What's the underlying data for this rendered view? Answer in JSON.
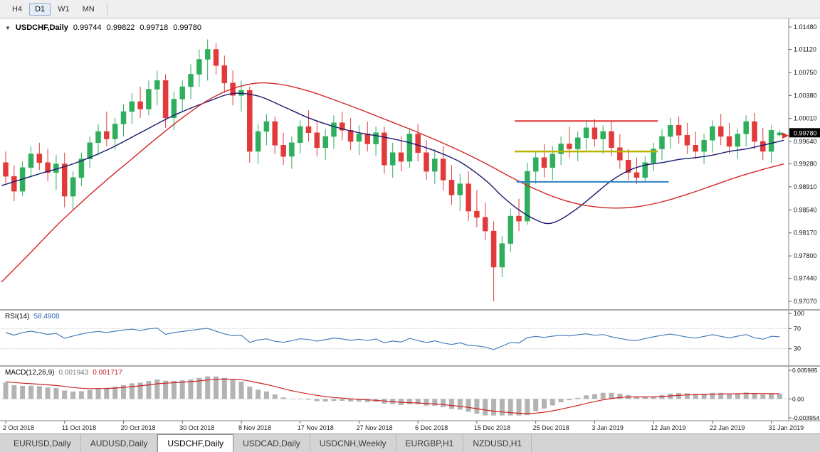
{
  "toolbar": {
    "buttons": [
      {
        "label": "H4",
        "active": false
      },
      {
        "label": "D1",
        "active": true
      },
      {
        "label": "W1",
        "active": false
      },
      {
        "label": "MN",
        "active": false
      }
    ]
  },
  "header": {
    "dropdown_icon": "▼",
    "symbol": "USDCHF,Daily",
    "open": "0.99744",
    "high": "0.99822",
    "low": "0.99718",
    "close": "0.99780"
  },
  "bottom_tabs": {
    "items": [
      {
        "label": "EURUSD,Daily",
        "active": false
      },
      {
        "label": "AUDUSD,Daily",
        "active": false
      },
      {
        "label": "USDCHF,Daily",
        "active": true
      },
      {
        "label": "USDCAD,Daily",
        "active": false
      },
      {
        "label": "USDCNH,Weekly",
        "active": false
      },
      {
        "label": "EURGBP,H1",
        "active": false
      },
      {
        "label": "NZDUSD,H1",
        "active": false
      }
    ]
  },
  "chart_data": {
    "type": "candlestick",
    "symbol": "USDCHF",
    "timeframe": "Daily",
    "colors": {
      "bull": "#2fae5d",
      "bear": "#e23a3a"
    },
    "price_axis_ticks": [
      "1.01480",
      "1.01120",
      "1.00750",
      "1.00380",
      "1.00010",
      "0.99640",
      "0.99280",
      "0.98910",
      "0.98540",
      "0.98170",
      "0.97800",
      "0.97440",
      "0.97070"
    ],
    "current_price_label": "0.99780",
    "x_axis_labels": [
      "2 Oct 2018",
      "11 Oct 2018",
      "20 Oct 2018",
      "30 Oct 2018",
      "8 Nov 2018",
      "17 Nov 2018",
      "27 Nov 2018",
      "6 Dec 2018",
      "15 Dec 2018",
      "25 Dec 2018",
      "3 Jan 2019",
      "12 Jan 2019",
      "22 Jan 2019",
      "31 Jan 2019"
    ],
    "x_label_step": 7,
    "candles": [
      [
        0.993,
        0.9948,
        0.9897,
        0.9908
      ],
      [
        0.9908,
        0.9926,
        0.9868,
        0.9884
      ],
      [
        0.9884,
        0.9932,
        0.9876,
        0.9922
      ],
      [
        0.9922,
        0.9956,
        0.9906,
        0.9944
      ],
      [
        0.9944,
        0.9962,
        0.9918,
        0.993
      ],
      [
        0.993,
        0.9952,
        0.99,
        0.9914
      ],
      [
        0.9914,
        0.9942,
        0.9886,
        0.9928
      ],
      [
        0.9928,
        0.9946,
        0.9858,
        0.9876
      ],
      [
        0.9876,
        0.9916,
        0.9854,
        0.9906
      ],
      [
        0.9906,
        0.9946,
        0.9892,
        0.9936
      ],
      [
        0.9936,
        0.9972,
        0.9922,
        0.9962
      ],
      [
        0.9962,
        0.9992,
        0.9942,
        0.998
      ],
      [
        0.998,
        1.0012,
        0.9956,
        0.9968
      ],
      [
        0.9968,
        1.0002,
        0.995,
        0.9992
      ],
      [
        0.9992,
        1.0024,
        0.9972,
        1.0012
      ],
      [
        1.0012,
        1.0042,
        0.9992,
        1.0028
      ],
      [
        1.0028,
        1.0052,
        1.0002,
        1.0016
      ],
      [
        1.0016,
        1.0062,
        1.0006,
        1.0048
      ],
      [
        1.0048,
        1.0078,
        1.0022,
        1.0062
      ],
      [
        1.0062,
        1.0072,
        0.9986,
        1.0002
      ],
      [
        1.0002,
        1.0044,
        0.9982,
        1.0032
      ],
      [
        1.0032,
        1.0062,
        1.0012,
        1.0052
      ],
      [
        1.0052,
        1.0088,
        1.0032,
        1.0072
      ],
      [
        1.0072,
        1.0112,
        1.0052,
        1.0096
      ],
      [
        1.0096,
        1.0128,
        1.0062,
        1.0112
      ],
      [
        1.0112,
        1.0122,
        1.0072,
        1.0086
      ],
      [
        1.0086,
        1.0102,
        1.0042,
        1.0058
      ],
      [
        1.0058,
        1.0078,
        1.0022,
        1.0038
      ],
      [
        1.0038,
        1.0062,
        1.0012,
        1.0046
      ],
      [
        1.0046,
        1.0052,
        0.993,
        0.9948
      ],
      [
        0.9948,
        0.9992,
        0.9928,
        0.998
      ],
      [
        0.998,
        1.0008,
        0.9958,
        0.9996
      ],
      [
        0.9996,
        1.0004,
        0.9944,
        0.9958
      ],
      [
        0.9958,
        0.9978,
        0.9926,
        0.994
      ],
      [
        0.994,
        0.9972,
        0.992,
        0.9962
      ],
      [
        0.9962,
        0.9998,
        0.9944,
        0.9988
      ],
      [
        0.9988,
        1.0014,
        0.9964,
        0.9978
      ],
      [
        0.9978,
        0.9998,
        0.994,
        0.9954
      ],
      [
        0.9954,
        0.9984,
        0.9934,
        0.9972
      ],
      [
        0.9972,
        1.0006,
        0.9952,
        0.9994
      ],
      [
        0.9994,
        1.0012,
        0.9966,
        0.9982
      ],
      [
        0.9982,
        1.0002,
        0.995,
        0.9964
      ],
      [
        0.9964,
        0.999,
        0.9942,
        0.9976
      ],
      [
        0.9976,
        0.9996,
        0.9948,
        0.996
      ],
      [
        0.996,
        0.9988,
        0.994,
        0.9978
      ],
      [
        0.9978,
        0.9988,
        0.9912,
        0.9926
      ],
      [
        0.9926,
        0.9962,
        0.9906,
        0.9946
      ],
      [
        0.9946,
        0.9972,
        0.9916,
        0.9932
      ],
      [
        0.9932,
        0.9986,
        0.9922,
        0.9976
      ],
      [
        0.9976,
        0.9992,
        0.9932,
        0.9946
      ],
      [
        0.9946,
        0.9966,
        0.9902,
        0.9916
      ],
      [
        0.9916,
        0.9952,
        0.9896,
        0.9936
      ],
      [
        0.9936,
        0.9956,
        0.9886,
        0.9902
      ],
      [
        0.9902,
        0.9926,
        0.9862,
        0.9878
      ],
      [
        0.9878,
        0.9912,
        0.9852,
        0.9896
      ],
      [
        0.9896,
        0.9916,
        0.9836,
        0.9852
      ],
      [
        0.9852,
        0.9886,
        0.9826,
        0.9842
      ],
      [
        0.9842,
        0.9866,
        0.9806,
        0.982
      ],
      [
        0.982,
        0.9836,
        0.9707,
        0.9762
      ],
      [
        0.9762,
        0.9812,
        0.9746,
        0.98
      ],
      [
        0.98,
        0.9856,
        0.9786,
        0.9844
      ],
      [
        0.9844,
        0.9872,
        0.982,
        0.9836
      ],
      [
        0.9836,
        0.993,
        0.983,
        0.9916
      ],
      [
        0.9916,
        0.9948,
        0.9896,
        0.9938
      ],
      [
        0.9938,
        0.996,
        0.9906,
        0.9922
      ],
      [
        0.9922,
        0.9956,
        0.9902,
        0.9944
      ],
      [
        0.9944,
        0.9972,
        0.9926,
        0.996
      ],
      [
        0.996,
        0.9988,
        0.9938,
        0.9952
      ],
      [
        0.9952,
        0.998,
        0.9932,
        0.997
      ],
      [
        0.997,
        0.9998,
        0.995,
        0.9986
      ],
      [
        0.9986,
        1.0,
        0.9956,
        0.9968
      ],
      [
        0.9968,
        0.999,
        0.9944,
        0.998
      ],
      [
        0.998,
        0.9996,
        0.994,
        0.9954
      ],
      [
        0.9954,
        0.9976,
        0.992,
        0.9934
      ],
      [
        0.9934,
        0.9952,
        0.9902,
        0.9914
      ],
      [
        0.9914,
        0.9938,
        0.9896,
        0.9906
      ],
      [
        0.9906,
        0.994,
        0.9898,
        0.993
      ],
      [
        0.993,
        0.9962,
        0.9916,
        0.9952
      ],
      [
        0.9952,
        0.9984,
        0.9934,
        0.9972
      ],
      [
        0.9972,
        1.0002,
        0.9952,
        0.999
      ],
      [
        0.999,
        1.0004,
        0.996,
        0.9974
      ],
      [
        0.9974,
        0.9994,
        0.9944,
        0.9958
      ],
      [
        0.9958,
        0.998,
        0.9936,
        0.9948
      ],
      [
        0.9948,
        0.9976,
        0.9928,
        0.9966
      ],
      [
        0.9966,
        0.9998,
        0.9946,
        0.9988
      ],
      [
        0.9988,
        1.0008,
        0.9958,
        0.9972
      ],
      [
        0.9972,
        0.9994,
        0.9944,
        0.9956
      ],
      [
        0.9956,
        0.9984,
        0.9936,
        0.9976
      ],
      [
        0.9976,
        1.0006,
        0.9956,
        0.9996
      ],
      [
        0.9996,
        1.001,
        0.9952,
        0.9964
      ],
      [
        0.9964,
        0.9986,
        0.9934,
        0.9948
      ],
      [
        0.9948,
        0.999,
        0.993,
        0.9982
      ],
      [
        0.99744,
        0.99822,
        0.99718,
        0.9978
      ]
    ],
    "overlays": {
      "ma_fast_navy": {
        "color": "#191970",
        "points": [
          [
            -0.5,
            0.9893
          ],
          [
            4,
            0.9912
          ],
          [
            8,
            0.9928
          ],
          [
            12,
            0.995
          ],
          [
            16,
            0.9978
          ],
          [
            20,
            1.0006
          ],
          [
            24,
            1.0028
          ],
          [
            27,
            1.0041
          ],
          [
            30,
            1.0037
          ],
          [
            33,
            1.002
          ],
          [
            36,
            1.0002
          ],
          [
            39,
            0.9988
          ],
          [
            42,
            0.9978
          ],
          [
            45,
            0.9971
          ],
          [
            48,
            0.9962
          ],
          [
            51,
            0.9949
          ],
          [
            54,
            0.9931
          ],
          [
            57,
            0.9902
          ],
          [
            59,
            0.9876
          ],
          [
            61,
            0.9854
          ],
          [
            63,
            0.9838
          ],
          [
            64.5,
            0.9832
          ],
          [
            66,
            0.9839
          ],
          [
            68,
            0.9857
          ],
          [
            70,
            0.9879
          ],
          [
            72,
            0.9901
          ],
          [
            74,
            0.9917
          ],
          [
            76,
            0.9926
          ],
          [
            78,
            0.993
          ],
          [
            80,
            0.9935
          ],
          [
            82,
            0.9938
          ],
          [
            84,
            0.9942
          ],
          [
            86,
            0.9948
          ],
          [
            88,
            0.9952
          ],
          [
            90,
            0.9958
          ],
          [
            92.5,
            0.9966
          ]
        ]
      },
      "ma_slow_red": {
        "color": "#d42626",
        "points": [
          [
            -0.5,
            0.9738
          ],
          [
            3,
            0.9786
          ],
          [
            6,
            0.9828
          ],
          [
            9,
            0.9866
          ],
          [
            12,
            0.9902
          ],
          [
            15,
            0.9936
          ],
          [
            18,
            0.997
          ],
          [
            21,
            1.0002
          ],
          [
            24,
            1.003
          ],
          [
            27,
            1.0049
          ],
          [
            30,
            1.0058
          ],
          [
            33,
            1.0055
          ],
          [
            36,
            1.0045
          ],
          [
            39,
            1.0031
          ],
          [
            42,
            1.0016
          ],
          [
            45,
            1.0
          ],
          [
            48,
            0.9984
          ],
          [
            51,
            0.9967
          ],
          [
            54,
            0.9949
          ],
          [
            57,
            0.9929
          ],
          [
            60,
            0.9907
          ],
          [
            63,
            0.9887
          ],
          [
            66,
            0.9871
          ],
          [
            69,
            0.9861
          ],
          [
            72,
            0.9857
          ],
          [
            75,
            0.9859
          ],
          [
            78,
            0.9867
          ],
          [
            81,
            0.9879
          ],
          [
            84,
            0.9893
          ],
          [
            87,
            0.9907
          ],
          [
            90,
            0.9919
          ],
          [
            92.5,
            0.9928
          ]
        ]
      },
      "hlines": [
        {
          "name": "resistance-line-red",
          "price": 0.9997,
          "from_index": 60.5,
          "to_index": 77.5,
          "color": "#e03030",
          "width": 2
        },
        {
          "name": "mid-line-yellow",
          "price": 0.9948,
          "from_index": 60.5,
          "to_index": 77.5,
          "color": "#b9b400",
          "width": 2.5
        },
        {
          "name": "support-line-blue",
          "price": 0.9899,
          "from_index": 60.7,
          "to_index": 78.8,
          "color": "#2e7fc2",
          "width": 2
        }
      ],
      "arrow_marker": {
        "index": 92.9,
        "price": 0.99735,
        "color": "#e03030"
      }
    },
    "rsi": {
      "label": "RSI(14)",
      "value": "58.4908",
      "period": 14,
      "color": "#4a7ebb",
      "levels": [
        "100",
        "70",
        "30"
      ],
      "range": [
        0,
        100
      ],
      "seed_gain": 0.0013,
      "seed_loss": 0.0008
    },
    "macd": {
      "label": "MACD(12,26,9)",
      "value": "0.001943",
      "signal_value": "0.001717",
      "hist_color": "#b3b3b3",
      "signal_color": "#cc2222",
      "axis_ticks": [
        "0.005985",
        "0.00",
        "-0.003954"
      ],
      "max": 0.005985,
      "min": -0.003954,
      "seed_ema12": 0.9921,
      "seed_ema26": 0.9883,
      "seed_signal": 0.0036,
      "clamp": [
        -0.00345,
        0.00575
      ]
    }
  }
}
